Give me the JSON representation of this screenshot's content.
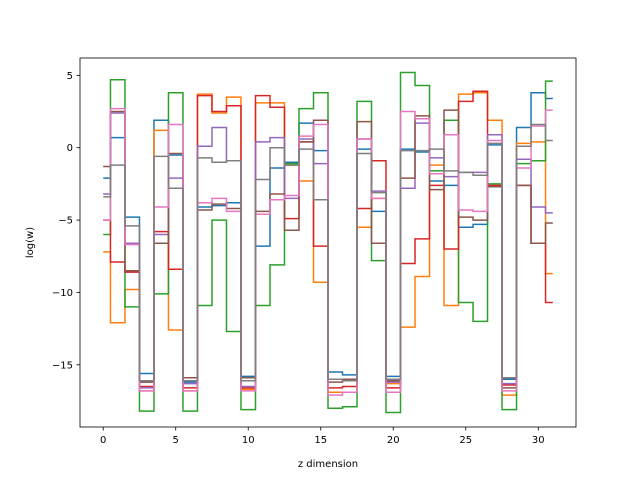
{
  "chart_data": {
    "type": "line",
    "drawstyle": "steps-mid",
    "xlabel": "z dimension",
    "ylabel": "log(w)",
    "title": "",
    "grid": false,
    "legend": false,
    "xlim": [
      -1.6,
      32.6
    ],
    "ylim": [
      -19.3,
      6.2
    ],
    "xticks": [
      0,
      5,
      10,
      15,
      20,
      25,
      30
    ],
    "yticks": [
      -15,
      -10,
      -5,
      0,
      5
    ],
    "x": [
      0,
      1,
      2,
      3,
      4,
      5,
      6,
      7,
      8,
      9,
      10,
      11,
      12,
      13,
      14,
      15,
      16,
      17,
      18,
      19,
      20,
      21,
      22,
      23,
      24,
      25,
      26,
      27,
      28,
      29,
      30,
      31
    ],
    "series": [
      {
        "color": "#1f77b4",
        "values": [
          -2.1,
          0.7,
          -4.8,
          -15.6,
          1.9,
          -0.5,
          -16.2,
          -4.1,
          -4.0,
          -3.8,
          -15.8,
          -6.8,
          -1.4,
          -1.0,
          1.7,
          -0.2,
          -15.5,
          -15.7,
          -0.1,
          -4.4,
          -15.8,
          -0.1,
          -0.3,
          -2.3,
          -2.6,
          -5.5,
          -5.3,
          0.2,
          -16.0,
          1.4,
          3.8,
          3.4
        ]
      },
      {
        "color": "#ff7f0e",
        "values": [
          -7.2,
          -12.1,
          -9.8,
          -16.8,
          1.2,
          -12.6,
          -16.8,
          3.7,
          2.4,
          3.5,
          -16.7,
          3.1,
          3.1,
          -1.2,
          -2.3,
          -9.3,
          -16.9,
          -16.9,
          -5.5,
          -3.5,
          -16.3,
          -12.4,
          -8.9,
          -1.2,
          -10.9,
          3.7,
          3.8,
          1.9,
          -17.1,
          0.3,
          0.4,
          -8.7
        ]
      },
      {
        "color": "#2ca02c",
        "values": [
          -6.0,
          4.7,
          -11.0,
          -18.2,
          -10.1,
          3.8,
          -18.2,
          -10.9,
          -5.0,
          -12.7,
          -18.1,
          -10.9,
          -8.1,
          -1.1,
          2.7,
          3.8,
          -18.0,
          -17.9,
          3.2,
          -7.8,
          -18.3,
          5.2,
          4.3,
          -1.6,
          1.9,
          -10.7,
          -12.0,
          -2.5,
          -18.1,
          -1.1,
          -0.9,
          4.6
        ]
      },
      {
        "color": "#d62728",
        "values": [
          -5.0,
          -7.9,
          -8.6,
          -16.5,
          -5.8,
          -8.4,
          -16.6,
          3.6,
          2.5,
          2.9,
          -16.6,
          3.6,
          2.8,
          -4.9,
          0.4,
          -6.8,
          -16.6,
          -16.5,
          -4.2,
          -0.9,
          -16.6,
          -8.0,
          -6.3,
          -2.6,
          -7.0,
          3.2,
          3.9,
          -2.6,
          -16.4,
          -2.6,
          -6.6,
          -10.7
        ]
      },
      {
        "color": "#9467bd",
        "values": [
          -3.2,
          2.4,
          -6.6,
          -16.6,
          -6.0,
          -2.1,
          -16.3,
          0.1,
          1.4,
          -0.9,
          -16.5,
          0.4,
          0.7,
          -3.5,
          0.6,
          -1.1,
          -16.0,
          -16.0,
          0.6,
          -3.0,
          -16.2,
          -2.8,
          1.7,
          -0.7,
          -2.0,
          -1.7,
          -1.7,
          0.9,
          -16.3,
          -0.8,
          -4.1,
          -4.5
        ]
      },
      {
        "color": "#8c564b",
        "values": [
          -1.3,
          2.5,
          -8.5,
          -16.2,
          -6.6,
          -0.4,
          -15.9,
          -4.3,
          -3.9,
          -4.2,
          -15.9,
          -4.4,
          -3.2,
          -5.7,
          0.4,
          1.9,
          -16.2,
          -16.0,
          1.8,
          -6.6,
          -16.1,
          -2.1,
          2.2,
          -2.9,
          2.6,
          -4.8,
          -5.0,
          -2.7,
          -16.6,
          -2.6,
          -6.6,
          -5.2
        ]
      },
      {
        "color": "#e377c2",
        "values": [
          -5.0,
          2.7,
          -6.7,
          -16.8,
          -4.1,
          1.6,
          -16.8,
          -3.8,
          -3.5,
          -4.4,
          -16.8,
          -4.6,
          -3.6,
          -3.3,
          0.8,
          1.6,
          -17.1,
          -16.9,
          0.6,
          -3.5,
          -16.9,
          2.5,
          2.0,
          -1.8,
          0.9,
          -4.3,
          -4.4,
          0.5,
          -16.8,
          -1.4,
          1.5,
          2.6
        ]
      },
      {
        "color": "#7f7f7f",
        "values": [
          -3.4,
          -1.2,
          -5.4,
          -16.1,
          -0.6,
          -2.8,
          -16.1,
          -0.7,
          -1.0,
          -0.9,
          -16.1,
          -2.2,
          0.0,
          -1.2,
          -0.1,
          -3.6,
          -16.0,
          -16.1,
          -0.4,
          -3.1,
          -16.0,
          -0.2,
          -0.2,
          -0.1,
          -1.6,
          -1.7,
          -1.9,
          0.3,
          -15.9,
          0.1,
          1.6,
          0.5
        ]
      }
    ]
  }
}
